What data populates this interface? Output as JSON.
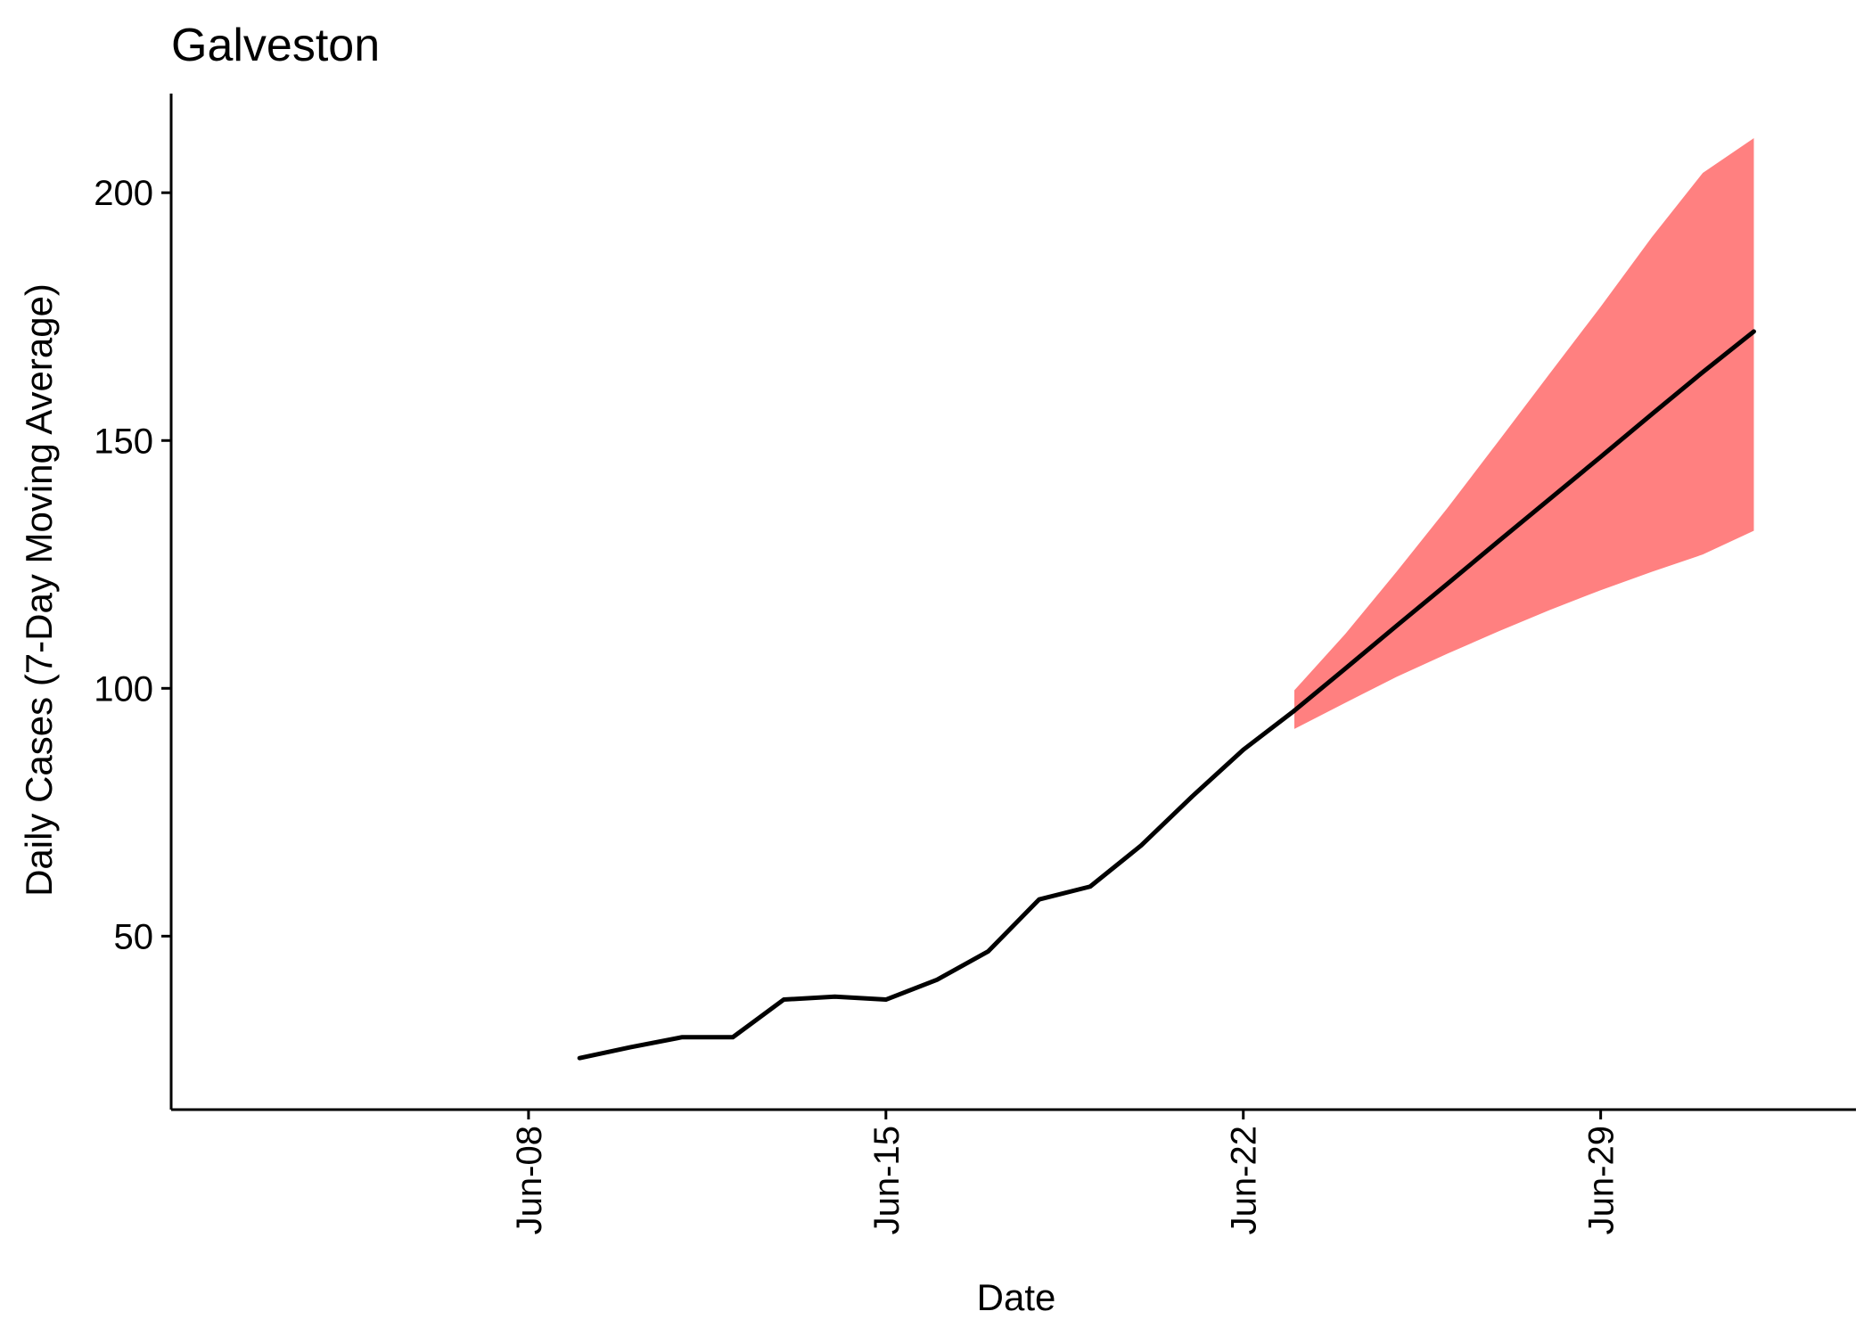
{
  "chart_data": {
    "type": "line",
    "title": "Galveston",
    "xlabel": "Date",
    "ylabel": "Daily Cases (7-Day Moving Average)",
    "x_range": [
      "2020-06-01",
      "2020-07-04"
    ],
    "ylim": [
      15,
      220
    ],
    "x_ticks": [
      {
        "date": "2020-06-08",
        "label": "Jun-08"
      },
      {
        "date": "2020-06-15",
        "label": "Jun-15"
      },
      {
        "date": "2020-06-22",
        "label": "Jun-22"
      },
      {
        "date": "2020-06-29",
        "label": "Jun-29"
      }
    ],
    "y_ticks": [
      50,
      100,
      150,
      200
    ],
    "grid": false,
    "observed": {
      "x": [
        "2020-06-09",
        "2020-06-10",
        "2020-06-11",
        "2020-06-12",
        "2020-06-13",
        "2020-06-14",
        "2020-06-15",
        "2020-06-16",
        "2020-06-17",
        "2020-06-18",
        "2020-06-19",
        "2020-06-20",
        "2020-06-21",
        "2020-06-22",
        "2020-06-23"
      ],
      "y": [
        25.4,
        27.6,
        29.6,
        29.6,
        37.2,
        37.8,
        37.2,
        41.2,
        46.9,
        57.4,
        60.0,
        68.3,
        78.2,
        87.6,
        95.5
      ],
      "color": "#000000"
    },
    "forecast": {
      "x": [
        "2020-06-23",
        "2020-06-24",
        "2020-06-25",
        "2020-06-26",
        "2020-06-27",
        "2020-06-28",
        "2020-06-29",
        "2020-06-30",
        "2020-07-01",
        "2020-07-02"
      ],
      "y": [
        95.5,
        104.0,
        112.6,
        121.1,
        129.7,
        138.2,
        146.7,
        155.3,
        163.8,
        172.0
      ],
      "lower": [
        91.8,
        97.1,
        102.3,
        107.0,
        111.5,
        115.8,
        119.8,
        123.5,
        127.0,
        131.8
      ],
      "upper": [
        99.6,
        111.0,
        123.5,
        136.4,
        149.9,
        163.5,
        177.0,
        191.0,
        204.0,
        211.0
      ],
      "line_color": "#000000",
      "band_color": "#ff8080"
    }
  }
}
